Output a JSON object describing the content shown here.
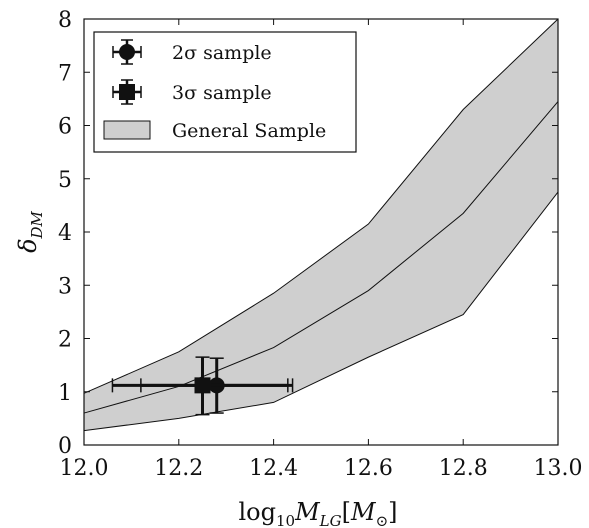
{
  "chart_data": {
    "type": "line",
    "xlabel": "log10 M_LG [M⊙]",
    "ylabel": "δ_DM",
    "xlim": [
      12.0,
      13.0
    ],
    "ylim": [
      0,
      8
    ],
    "xticks": [
      "12.0",
      "12.2",
      "12.4",
      "12.6",
      "12.8",
      "13.0"
    ],
    "yticks": [
      "0",
      "1",
      "2",
      "3",
      "4",
      "5",
      "6",
      "7",
      "8"
    ],
    "band": {
      "name": "General Sample",
      "x": [
        12.0,
        12.2,
        12.4,
        12.6,
        12.8,
        13.0
      ],
      "upper": [
        0.97,
        1.75,
        2.85,
        4.15,
        6.3,
        8.0
      ],
      "median": [
        0.6,
        1.1,
        1.83,
        2.9,
        4.35,
        6.45
      ],
      "lower": [
        0.27,
        0.5,
        0.8,
        1.65,
        2.45,
        4.75
      ]
    },
    "points": [
      {
        "name": "2σ sample",
        "marker": "circle",
        "x": 12.28,
        "y": 1.12,
        "xerr_low": 12.12,
        "xerr_high": 12.44,
        "yerr_low": 0.6,
        "yerr_high": 1.63
      },
      {
        "name": "3σ sample",
        "marker": "square",
        "x": 12.25,
        "y": 1.12,
        "xerr_low": 12.06,
        "xerr_high": 12.43,
        "yerr_low": 0.57,
        "yerr_high": 1.65
      }
    ],
    "legend_position": "top-left",
    "colors": {
      "band_fill": "#cfcfcf",
      "line": "#111111"
    }
  }
}
